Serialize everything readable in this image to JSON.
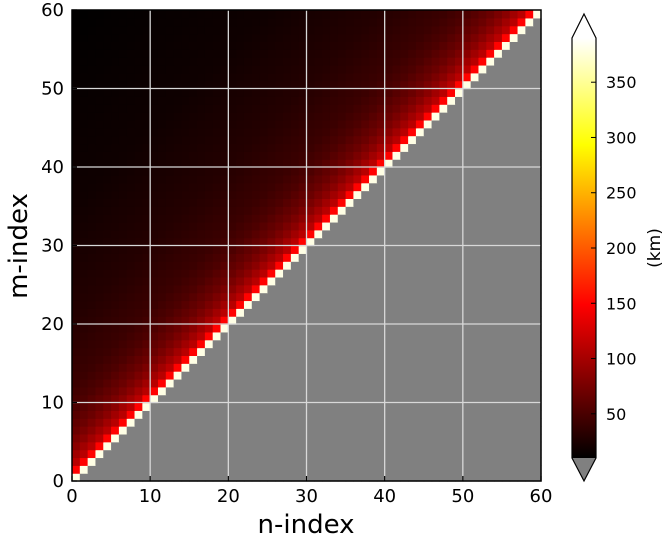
{
  "chart_data": {
    "type": "heatmap",
    "title": "",
    "xlabel": "n-index",
    "ylabel": "m-index",
    "xlim": [
      0,
      60
    ],
    "ylim": [
      0,
      60
    ],
    "x_ticks": [
      0,
      10,
      20,
      30,
      40,
      50,
      60
    ],
    "y_ticks": [
      0,
      10,
      20,
      30,
      40,
      50,
      60
    ],
    "x_tick_labels": [
      "0",
      "10",
      "20",
      "30",
      "40",
      "50",
      "60"
    ],
    "y_tick_labels": [
      "0",
      "10",
      "20",
      "30",
      "40",
      "50",
      "60"
    ],
    "grid": true,
    "grid_color": "#d8d8d8",
    "masked_region": "m < n",
    "masked_color": "#808080",
    "value_description": "value increases toward the diagonal m = n and decreases with distance m - n",
    "value_model": {
      "diagonal_value": 380,
      "near_diagonal_value": 150,
      "far_value": 10,
      "decay_offsets": [
        0,
        1,
        2,
        4,
        6,
        9,
        12,
        20,
        35,
        60
      ],
      "decay_values": [
        380,
        150,
        110,
        85,
        68,
        52,
        42,
        30,
        18,
        10
      ]
    },
    "colorbar": {
      "label": "(km)",
      "colormap": "hot",
      "range": [
        10,
        390
      ],
      "ticks": [
        50,
        100,
        150,
        200,
        250,
        300,
        350
      ],
      "tick_labels": [
        "50",
        "100",
        "150",
        "200",
        "250",
        "300",
        "350"
      ],
      "extend": "both",
      "over_color": "#ffffff",
      "under_color": "#808080"
    }
  }
}
